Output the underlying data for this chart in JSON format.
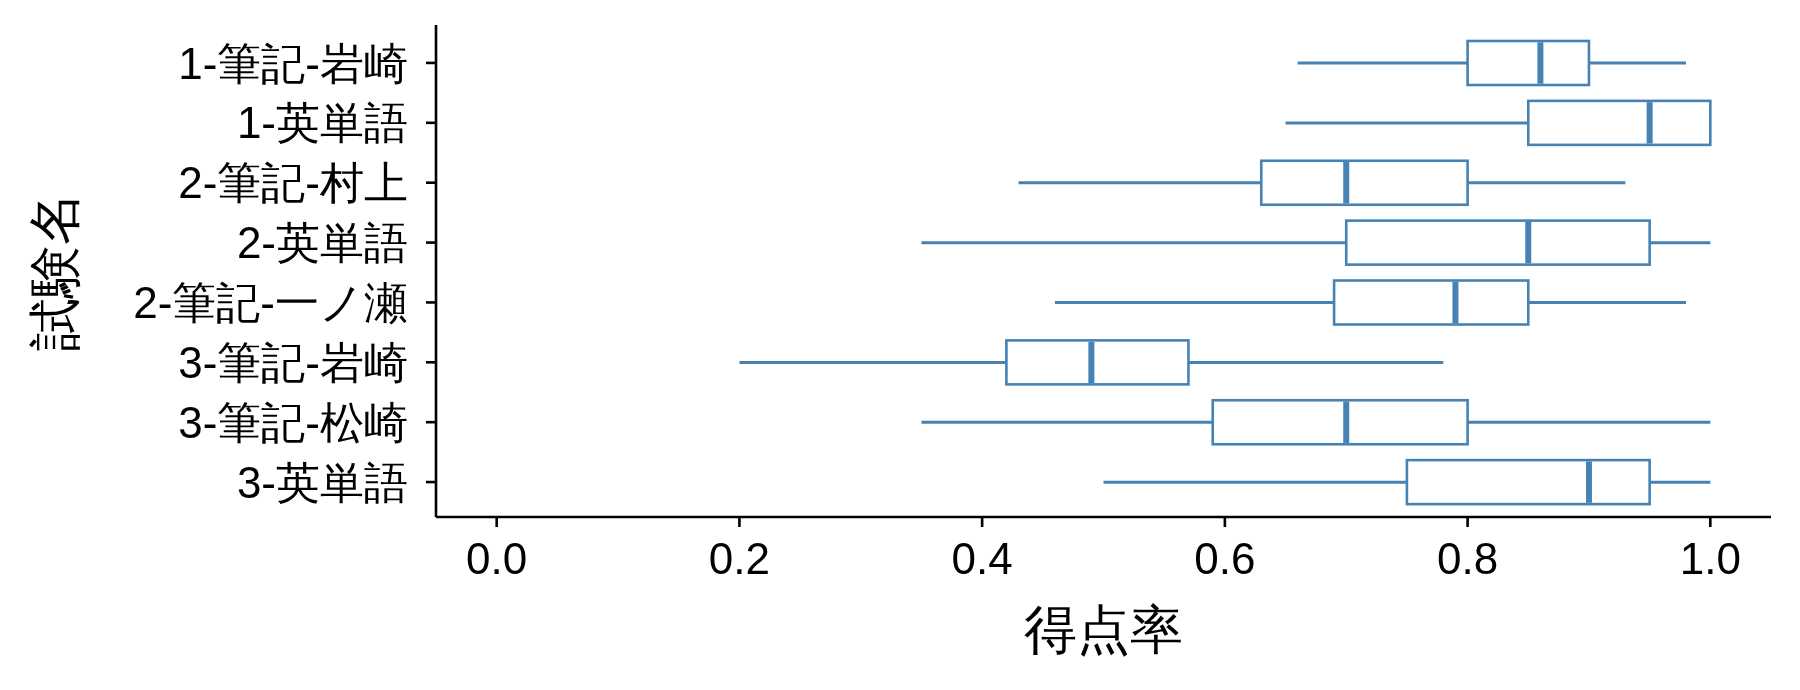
{
  "chart_data": {
    "type": "box",
    "orientation": "horizontal",
    "xlabel": "得点率",
    "ylabel": "試験名",
    "categories": [
      "1-筆記-岩崎",
      "1-英単語",
      "2-筆記-村上",
      "2-英単語",
      "2-筆記-一ノ瀬",
      "3-筆記-岩崎",
      "3-筆記-松崎",
      "3-英単語"
    ],
    "color": "#4682b4",
    "boxes": [
      {
        "low": 0.66,
        "q1": 0.8,
        "median": 0.86,
        "q3": 0.9,
        "high": 0.98
      },
      {
        "low": 0.65,
        "q1": 0.85,
        "median": 0.95,
        "q3": 1.0,
        "high": 1.0
      },
      {
        "low": 0.43,
        "q1": 0.63,
        "median": 0.7,
        "q3": 0.8,
        "high": 0.93
      },
      {
        "low": 0.35,
        "q1": 0.7,
        "median": 0.85,
        "q3": 0.95,
        "high": 1.0
      },
      {
        "low": 0.46,
        "q1": 0.69,
        "median": 0.79,
        "q3": 0.85,
        "high": 0.98
      },
      {
        "low": 0.2,
        "q1": 0.42,
        "median": 0.49,
        "q3": 0.57,
        "high": 0.78
      },
      {
        "low": 0.35,
        "q1": 0.59,
        "median": 0.7,
        "q3": 0.8,
        "high": 1.0
      },
      {
        "low": 0.5,
        "q1": 0.75,
        "median": 0.9,
        "q3": 0.95,
        "high": 1.0
      }
    ],
    "xlim": [
      -0.05,
      1.05
    ],
    "xticks": [
      {
        "value": 0,
        "label": "0.0"
      },
      0.2,
      0.4,
      0.6,
      0.8,
      {
        "value": 1,
        "label": "1.0"
      }
    ]
  }
}
